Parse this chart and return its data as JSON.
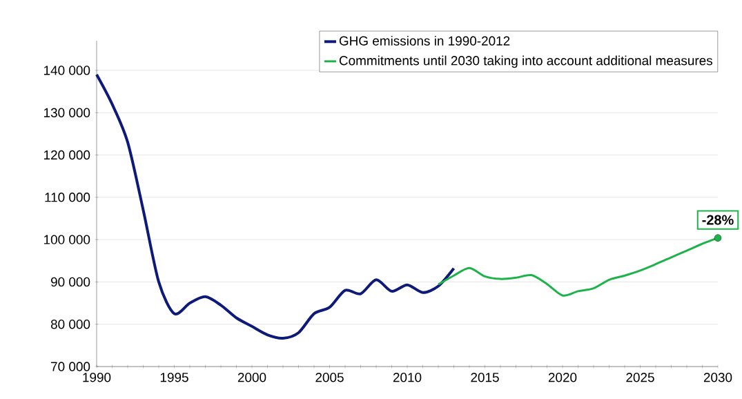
{
  "chart_data": {
    "type": "line",
    "x": [
      1990,
      1991,
      1992,
      1993,
      1994,
      1995,
      1996,
      1997,
      1998,
      1999,
      2000,
      2001,
      2002,
      2003,
      2004,
      2005,
      2006,
      2007,
      2008,
      2009,
      2010,
      2011,
      2012,
      2013
    ],
    "series": [
      {
        "name": "GHG emissions in 1990-2012",
        "color": "#0d1a7a",
        "values": [
          139000,
          132000,
          123000,
          107000,
          90000,
          82500,
          85000,
          86500,
          84500,
          81500,
          79500,
          77500,
          76700,
          78000,
          82500,
          84000,
          88000,
          87200,
          90500,
          87800,
          89300,
          87500,
          89000,
          93200
        ]
      },
      {
        "name": "Commitments until 2030 taking into account additional measures",
        "color": "#1db34a",
        "x": [
          2012,
          2013,
          2014,
          2015,
          2016,
          2017,
          2018,
          2019,
          2020,
          2021,
          2022,
          2023,
          2024,
          2025,
          2026,
          2027,
          2028,
          2029,
          2030
        ],
        "values": [
          89400,
          91500,
          93300,
          91300,
          90700,
          91000,
          91600,
          89500,
          86800,
          87800,
          88500,
          90500,
          91500,
          92700,
          94200,
          95800,
          97400,
          99000,
          100400
        ]
      },
      {
        "type": "scatter",
        "color": "#1db34a",
        "x": [
          2030
        ],
        "values": [
          100400
        ]
      }
    ],
    "annotations": [
      {
        "text": "-28%",
        "x": 2030,
        "y": 100400
      }
    ],
    "xlim": [
      1990,
      2030
    ],
    "xticks": [
      1990,
      {
        "value": 1991,
        "label": null
      },
      {
        "value": 1992,
        "label": null
      },
      {
        "value": 1993,
        "label": null
      },
      {
        "value": 1994,
        "label": null
      },
      1995,
      {
        "value": 1996,
        "label": null
      },
      {
        "value": 1997,
        "label": null
      },
      {
        "value": 1998,
        "label": null
      },
      {
        "value": 1999,
        "label": null
      },
      2000,
      {
        "value": 2001,
        "label": null
      },
      {
        "value": 2002,
        "label": null
      },
      {
        "value": 2003,
        "label": null
      },
      {
        "value": 2004,
        "label": null
      },
      2005,
      {
        "value": 2006,
        "label": null
      },
      {
        "value": 2007,
        "label": null
      },
      {
        "value": 2008,
        "label": null
      },
      {
        "value": 2009,
        "label": null
      },
      2010,
      {
        "value": 2011,
        "label": null
      },
      {
        "value": 2012,
        "label": null
      },
      {
        "value": 2013,
        "label": null
      },
      {
        "value": 2014,
        "label": null
      },
      2015,
      {
        "value": 2016,
        "label": null
      },
      {
        "value": 2017,
        "label": null
      },
      {
        "value": 2018,
        "label": null
      },
      {
        "value": 2019,
        "label": null
      },
      2020,
      {
        "value": 2021,
        "label": null
      },
      {
        "value": 2022,
        "label": null
      },
      {
        "value": 2023,
        "label": null
      },
      {
        "value": 2024,
        "label": null
      },
      2025,
      {
        "value": 2026,
        "label": null
      },
      {
        "value": 2027,
        "label": null
      },
      {
        "value": 2028,
        "label": null
      },
      {
        "value": 2029,
        "label": null
      },
      2030
    ],
    "ylim": [
      70000,
      147000
    ],
    "yticks": [
      {
        "value": 70000,
        "label": "70 000"
      },
      {
        "value": 80000,
        "label": "80 000"
      },
      {
        "value": 90000,
        "label": "90 000"
      },
      {
        "value": 100000,
        "label": "100 000"
      },
      {
        "value": 110000,
        "label": "110 000"
      },
      {
        "value": 120000,
        "label": "120 000"
      },
      {
        "value": 130000,
        "label": "130 000"
      },
      {
        "value": 140000,
        "label": "140 000"
      }
    ],
    "grid": "y",
    "legend": "top right",
    "line_style": "solid"
  }
}
